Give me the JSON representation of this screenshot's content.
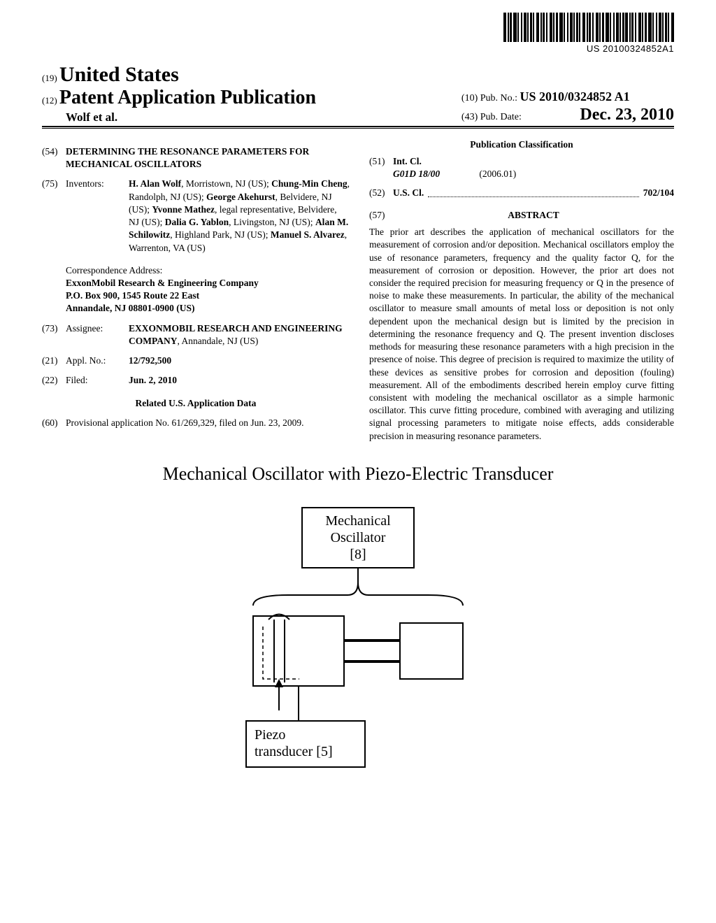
{
  "barcode_text": "US 20100324852A1",
  "country_code": "(19)",
  "country_name": "United States",
  "pub_code": "(12)",
  "pub_type": "Patent Application Publication",
  "authors_line": "Wolf et al.",
  "pubno_code": "(10)",
  "pubno_label": "Pub. No.:",
  "pubno_value": "US 2010/0324852 A1",
  "pubdate_code": "(43)",
  "pubdate_label": "Pub. Date:",
  "pubdate_value": "Dec. 23, 2010",
  "section54": {
    "code": "(54)",
    "title": "DETERMINING THE RESONANCE PARAMETERS FOR MECHANICAL OSCILLATORS"
  },
  "section75": {
    "code": "(75)",
    "label": "Inventors:",
    "inventors_html": [
      {
        "name": "H. Alan Wolf",
        "loc": ", Morristown, NJ (US); "
      },
      {
        "name": "Chung-Min Cheng",
        "loc": ", Randolph, NJ (US); "
      },
      {
        "name": "George Akehurst",
        "loc": ", Belvidere, NJ (US); "
      },
      {
        "name": "Yvonne Mathez",
        "loc": ", legal representative, Belvidere, NJ (US); "
      },
      {
        "name": "Dalia G. Yablon",
        "loc": ", Livingston, NJ (US); "
      },
      {
        "name": "Alan M. Schilowitz",
        "loc": ", Highland Park, NJ (US); "
      },
      {
        "name": "Manuel S. Alvarez",
        "loc": ", Warrenton, VA (US)"
      }
    ]
  },
  "correspondence": {
    "label": "Correspondence Address:",
    "line1": "ExxonMobil Research & Engineering Company",
    "line2": "P.O. Box 900, 1545 Route 22 East",
    "line3": "Annandale, NJ 08801-0900 (US)"
  },
  "section73": {
    "code": "(73)",
    "label": "Assignee:",
    "name": "EXXONMOBIL RESEARCH AND ENGINEERING COMPANY",
    "loc": ", Annandale, NJ (US)"
  },
  "section21": {
    "code": "(21)",
    "label": "Appl. No.:",
    "value": "12/792,500"
  },
  "section22": {
    "code": "(22)",
    "label": "Filed:",
    "value": "Jun. 2, 2010"
  },
  "related_header": "Related U.S. Application Data",
  "section60": {
    "code": "(60)",
    "text": "Provisional application No. 61/269,329, filed on Jun. 23, 2009."
  },
  "class_header": "Publication Classification",
  "section51": {
    "code": "(51)",
    "label": "Int. Cl.",
    "symbol": "G01D 18/00",
    "date": "(2006.01)"
  },
  "section52": {
    "code": "(52)",
    "label": "U.S. Cl.",
    "value": "702/104"
  },
  "section57": {
    "code": "(57)",
    "header": "ABSTRACT",
    "text": "The prior art describes the application of mechanical oscillators for the measurement of corrosion and/or deposition. Mechanical oscillators employ the use of resonance parameters, frequency and the quality factor Q, for the measurement of corrosion or deposition. However, the prior art does not consider the required precision for measuring frequency or Q in the presence of noise to make these measurements. In particular, the ability of the mechanical oscillator to measure small amounts of metal loss or deposition is not only dependent upon the mechanical design but is limited by the precision in determining the resonance frequency and Q. The present invention discloses methods for measuring these resonance parameters with a high precision in the presence of noise. This degree of precision is required to maximize the utility of these devices as sensitive probes for corrosion and deposition (fouling) measurement. All of the embodiments described herein employ curve fitting consistent with modeling the mechanical oscillator as a simple harmonic oscillator. This curve fitting procedure, combined with averaging and utilizing signal processing parameters to mitigate noise effects, adds considerable precision in measuring resonance parameters."
  },
  "figure": {
    "title": "Mechanical Oscillator with Piezo-Electric Transducer",
    "box1_line1": "Mechanical",
    "box1_line2": "Oscillator",
    "box1_line3": "[8]",
    "box2_line1": "Piezo",
    "box2_line2": "transducer [5]",
    "colors": {
      "stroke": "#000000",
      "bg": "#ffffff"
    },
    "stroke_width": 2
  }
}
